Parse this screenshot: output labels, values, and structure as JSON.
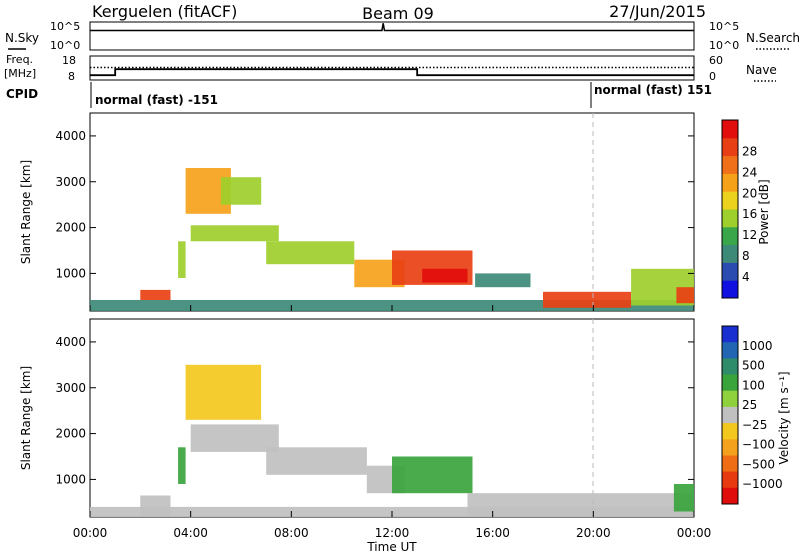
{
  "header": {
    "site": "Kerguelen (fitACF)",
    "beam": "Beam 09",
    "date": "27/Jun/2015"
  },
  "strip_labels": {
    "nsky": "N.Sky",
    "nsearch": "N.Search",
    "freq_l1": "Freq.",
    "freq_l2": "[MHz]",
    "nave": "Nave",
    "cpid": "CPID"
  },
  "strip_ticks": {
    "nsky_top": "10^5",
    "nsky_bottom": "10^0",
    "nsearch_top": "10^5",
    "nsearch_bottom": "10^0",
    "freq_top": "18",
    "freq_bottom": "8",
    "nave_top": "60",
    "nave_bottom": "0"
  },
  "cpid_labels": {
    "first": "normal (fast) -151",
    "second": "normal (fast) 151"
  },
  "chart_data": [
    {
      "type": "line",
      "panel": "N.Sky / N.Search",
      "x_unit": "hours UT",
      "xlim": [
        0,
        24
      ],
      "yscale": "log",
      "ylim": [
        1,
        100000
      ],
      "series": [
        {
          "x": [
            0,
            11.6,
            11.65,
            11.7,
            24
          ],
          "y": [
            3000,
            3000,
            60000,
            3000,
            3000
          ]
        }
      ]
    },
    {
      "type": "line",
      "panel": "Freq. / Nave",
      "x_unit": "hours UT",
      "xlim": [
        0,
        24
      ],
      "ylim_left": [
        8,
        18
      ],
      "ylim_right": [
        0,
        60
      ],
      "series": [
        {
          "x": [
            0,
            1.0,
            1.0,
            13.0,
            13.0,
            24
          ],
          "y": [
            10,
            10,
            12.5,
            12.5,
            10,
            10
          ]
        },
        {
          "x": [
            0,
            24
          ],
          "y": [
            13.2,
            13.2
          ]
        }
      ]
    },
    {
      "type": "heatmap",
      "panel": "power",
      "xlabel": "Time UT",
      "ylabel": "Slant Range [km]",
      "xlim": [
        0,
        24
      ],
      "ylim": [
        180,
        4500
      ],
      "xticks": [
        "00:00",
        "04:00",
        "08:00",
        "12:00",
        "16:00",
        "20:00",
        "00:00"
      ],
      "yticks": [
        1000,
        2000,
        3000,
        4000
      ],
      "colorbar": {
        "label": "Power [dB]",
        "ticks": [
          "4",
          "8",
          "12",
          "16",
          "20",
          "24",
          "28"
        ],
        "colors": [
          "#1010e0",
          "#2a4cb0",
          "#3d8a78",
          "#39a64a",
          "#9ecf2c",
          "#ecd21d",
          "#f5a21a",
          "#f07019",
          "#e84014",
          "#e20d0d"
        ]
      },
      "regions": [
        {
          "t0": 0.0,
          "t1": 24.0,
          "r0": 180,
          "r1": 420,
          "value": 8
        },
        {
          "t0": 2.0,
          "t1": 3.2,
          "r0": 420,
          "r1": 640,
          "value": 24
        },
        {
          "t0": 3.5,
          "t1": 3.8,
          "r0": 900,
          "r1": 1700,
          "value": 12
        },
        {
          "t0": 3.8,
          "t1": 5.6,
          "r0": 2300,
          "r1": 3300,
          "value": 20
        },
        {
          "t0": 5.2,
          "t1": 6.8,
          "r0": 2500,
          "r1": 3100,
          "value": 14
        },
        {
          "t0": 4.0,
          "t1": 7.5,
          "r0": 1700,
          "r1": 2050,
          "value": 12
        },
        {
          "t0": 7.0,
          "t1": 10.5,
          "r0": 1200,
          "r1": 1700,
          "value": 14
        },
        {
          "t0": 10.5,
          "t1": 12.5,
          "r0": 700,
          "r1": 1300,
          "value": 20
        },
        {
          "t0": 12.0,
          "t1": 15.2,
          "r0": 750,
          "r1": 1500,
          "value": 26
        },
        {
          "t0": 13.2,
          "t1": 15.0,
          "r0": 800,
          "r1": 1100,
          "value": 28
        },
        {
          "t0": 15.3,
          "t1": 17.5,
          "r0": 700,
          "r1": 1000,
          "value": 8
        },
        {
          "t0": 18.0,
          "t1": 21.5,
          "r0": 250,
          "r1": 600,
          "value": 24
        },
        {
          "t0": 21.5,
          "t1": 24.0,
          "r0": 300,
          "r1": 1100,
          "value": 12
        },
        {
          "t0": 23.3,
          "t1": 24.0,
          "r0": 350,
          "r1": 700,
          "value": 26
        }
      ]
    },
    {
      "type": "heatmap",
      "panel": "velocity",
      "xlabel": "Time UT",
      "ylabel": "Slant Range [km]",
      "xlim": [
        0,
        24
      ],
      "ylim": [
        180,
        4500
      ],
      "xticks": [
        "00:00",
        "04:00",
        "08:00",
        "12:00",
        "16:00",
        "20:00",
        "00:00"
      ],
      "yticks": [
        1000,
        2000,
        3000,
        4000
      ],
      "colorbar": {
        "label": "Velocity [m s⁻¹]",
        "ticks": [
          "1000",
          "500",
          "100",
          "25",
          "−25",
          "−100",
          "−500",
          "−1000"
        ],
        "colors": [
          "#1a2fcf",
          "#2266b3",
          "#2f8c6a",
          "#3aa43c",
          "#8fd03d",
          "#c0c0c0",
          "#f3c81e",
          "#f4a21d",
          "#ef6e15",
          "#e83a10",
          "#e00d0d"
        ]
      },
      "regions": [
        {
          "t0": 0.0,
          "t1": 24.0,
          "r0": 180,
          "r1": 400,
          "value": 0
        },
        {
          "t0": 2.0,
          "t1": 3.2,
          "r0": 200,
          "r1": 650,
          "value": -60
        },
        {
          "t0": 3.5,
          "t1": 3.8,
          "r0": 900,
          "r1": 1700,
          "value": 60
        },
        {
          "t0": 3.8,
          "t1": 6.8,
          "r0": 2300,
          "r1": 3500,
          "value": -300
        },
        {
          "t0": 4.0,
          "t1": 7.5,
          "r0": 1600,
          "r1": 2200,
          "value": 0
        },
        {
          "t0": 7.0,
          "t1": 11.0,
          "r0": 1100,
          "r1": 1700,
          "value": 0
        },
        {
          "t0": 11.0,
          "t1": 12.5,
          "r0": 700,
          "r1": 1300,
          "value": 0
        },
        {
          "t0": 12.0,
          "t1": 15.2,
          "r0": 700,
          "r1": 1500,
          "value": 60
        },
        {
          "t0": 15.0,
          "t1": 24.0,
          "r0": 200,
          "r1": 700,
          "value": 0
        },
        {
          "t0": 23.2,
          "t1": 24.0,
          "r0": 300,
          "r1": 900,
          "value": 60
        }
      ]
    }
  ]
}
